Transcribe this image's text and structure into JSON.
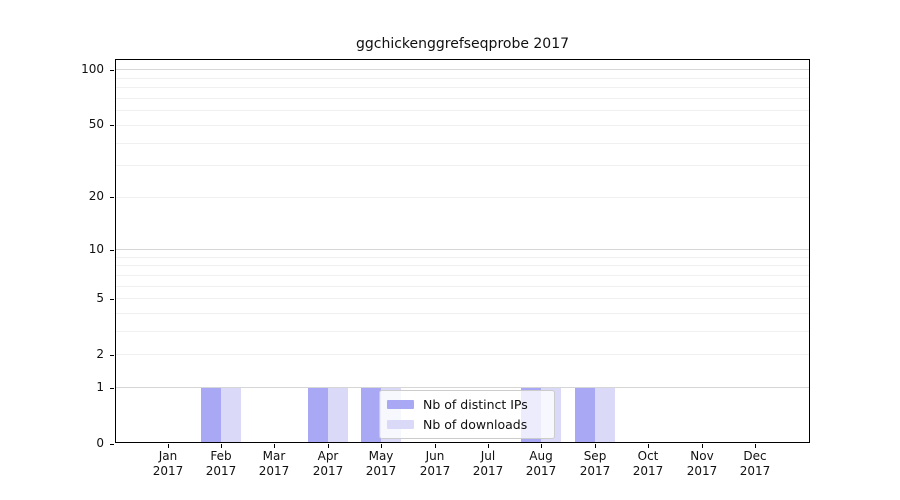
{
  "chart_data": {
    "type": "bar",
    "title": "ggchickenggrefseqprobe 2017",
    "year_label": "2017",
    "months": [
      "Jan",
      "Feb",
      "Mar",
      "Apr",
      "May",
      "Jun",
      "Jul",
      "Aug",
      "Sep",
      "Oct",
      "Nov",
      "Dec"
    ],
    "series": [
      {
        "name": "Nb of distinct IPs",
        "color": "#a8a8f5",
        "values": [
          0,
          1,
          0,
          1,
          1,
          0,
          0,
          1,
          1,
          0,
          0,
          0
        ]
      },
      {
        "name": "Nb of downloads",
        "color": "#dadaf8",
        "values": [
          0,
          1,
          0,
          1,
          1,
          0,
          0,
          1,
          1,
          0,
          0,
          0
        ]
      }
    ],
    "y_ticks": [
      0,
      1,
      2,
      5,
      10,
      20,
      50,
      100
    ],
    "y_scale": "log10(value+1)",
    "ylim": [
      0,
      100
    ],
    "grid": "horizontal",
    "grid_major_values": [
      1,
      10,
      100
    ],
    "grid_minor_values": [
      2,
      3,
      4,
      5,
      6,
      7,
      8,
      9,
      20,
      30,
      40,
      50,
      60,
      70,
      80,
      90
    ],
    "legend": {
      "position": "inside-bottom-center"
    },
    "colors": {
      "axis": "#000000",
      "grid_major": "#d6d6d6",
      "grid_minor": "#f0f0f0",
      "background": "#ffffff",
      "text": "#111111"
    }
  }
}
